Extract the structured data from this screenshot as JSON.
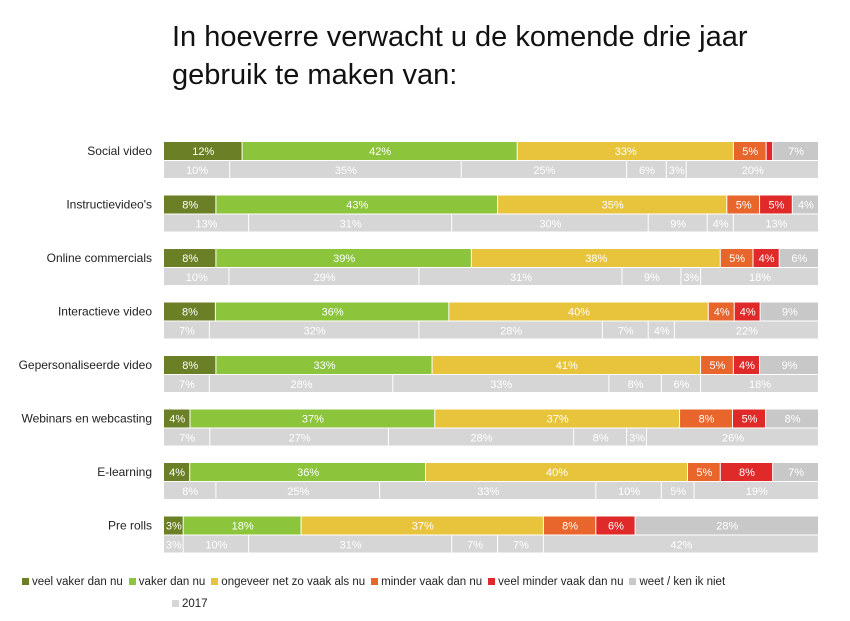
{
  "title_lines": [
    "In hoeverre verwacht u de komende drie jaar",
    "gebruik te maken van:"
  ],
  "colors": {
    "veel_vaker": "#6b7f26",
    "vaker": "#8cc43c",
    "ongeveer": "#e8c43c",
    "minder": "#e8652b",
    "veel_minder": "#e02a2a",
    "weet_niet": "#c8c8c8",
    "y2017": "#d6d6d6"
  },
  "chart_data": {
    "type": "bar",
    "orientation": "horizontal",
    "stacked": true,
    "normalized": true,
    "categories": [
      "Social video",
      "Instructievideo's",
      "Online commercials",
      "Interactieve video",
      "Gepersonaliseerde video",
      "Webinars en webcasting",
      "E-learning",
      "Pre rolls"
    ],
    "series": [
      {
        "name": "veel vaker dan nu",
        "color_key": "veel_vaker",
        "values": [
          12,
          8,
          8,
          8,
          8,
          4,
          4,
          3
        ]
      },
      {
        "name": "vaker dan nu",
        "color_key": "vaker",
        "values": [
          42,
          43,
          39,
          36,
          33,
          37,
          36,
          18
        ]
      },
      {
        "name": "ongeveer net zo vaak als nu",
        "color_key": "ongeveer",
        "values": [
          33,
          35,
          38,
          40,
          41,
          37,
          40,
          37
        ]
      },
      {
        "name": "minder vaak dan nu",
        "color_key": "minder",
        "values": [
          5,
          5,
          5,
          4,
          5,
          8,
          5,
          8
        ]
      },
      {
        "name": "veel minder vaak dan nu",
        "color_key": "veel_minder",
        "values": [
          1,
          5,
          4,
          4,
          4,
          5,
          8,
          6
        ]
      },
      {
        "name": "weet / ken ik niet",
        "color_key": "weet_niet",
        "values": [
          7,
          4,
          6,
          9,
          9,
          8,
          7,
          28
        ]
      }
    ],
    "comparison": {
      "name": "2017",
      "color_key": "y2017",
      "rows": [
        [
          10,
          35,
          25,
          6,
          3,
          20
        ],
        [
          13,
          31,
          30,
          9,
          4,
          13
        ],
        [
          10,
          29,
          31,
          9,
          3,
          18
        ],
        [
          7,
          32,
          28,
          7,
          4,
          22
        ],
        [
          7,
          28,
          33,
          8,
          6,
          18
        ],
        [
          7,
          27,
          28,
          8,
          3,
          26
        ],
        [
          8,
          25,
          33,
          10,
          5,
          19
        ],
        [
          3,
          10,
          31,
          7,
          7,
          42
        ]
      ]
    },
    "value_labels_hidden": [
      [
        0,
        4
      ]
    ],
    "label_suffix": "%",
    "legend": {
      "position": "bottom"
    }
  }
}
